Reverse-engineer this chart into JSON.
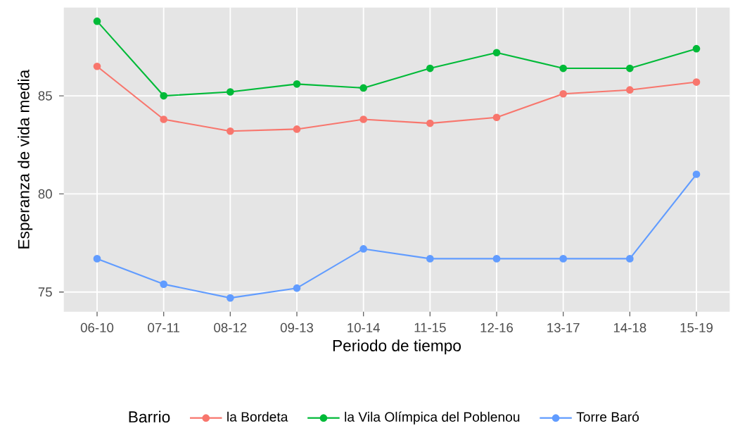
{
  "chart_data": {
    "type": "line",
    "xlabel": "Periodo de tiempo",
    "ylabel": "Esperanza de vida media",
    "legend_title": "Barrio",
    "categories": [
      "06-10",
      "07-11",
      "08-12",
      "09-13",
      "10-14",
      "11-15",
      "12-16",
      "13-17",
      "14-18",
      "15-19"
    ],
    "series": [
      {
        "name": "la Bordeta",
        "color": "#f8766d",
        "values": [
          86.5,
          83.8,
          83.2,
          83.3,
          83.8,
          83.6,
          83.9,
          85.1,
          85.3,
          85.7
        ]
      },
      {
        "name": "la Vila Olímpica del Poblenou",
        "color": "#00ba38",
        "values": [
          88.8,
          85.0,
          85.2,
          85.6,
          85.4,
          86.4,
          87.2,
          86.4,
          86.4,
          87.4
        ]
      },
      {
        "name": "Torre Baró",
        "color": "#619cff",
        "values": [
          76.7,
          75.4,
          74.7,
          75.2,
          77.2,
          76.7,
          76.7,
          76.7,
          76.7,
          81.0
        ]
      }
    ],
    "ylim": [
      74.0,
      89.5
    ],
    "yticks": [
      75,
      80,
      85
    ],
    "grid": true,
    "legend": "bottom",
    "marker": "circle",
    "line_style": "solid"
  }
}
